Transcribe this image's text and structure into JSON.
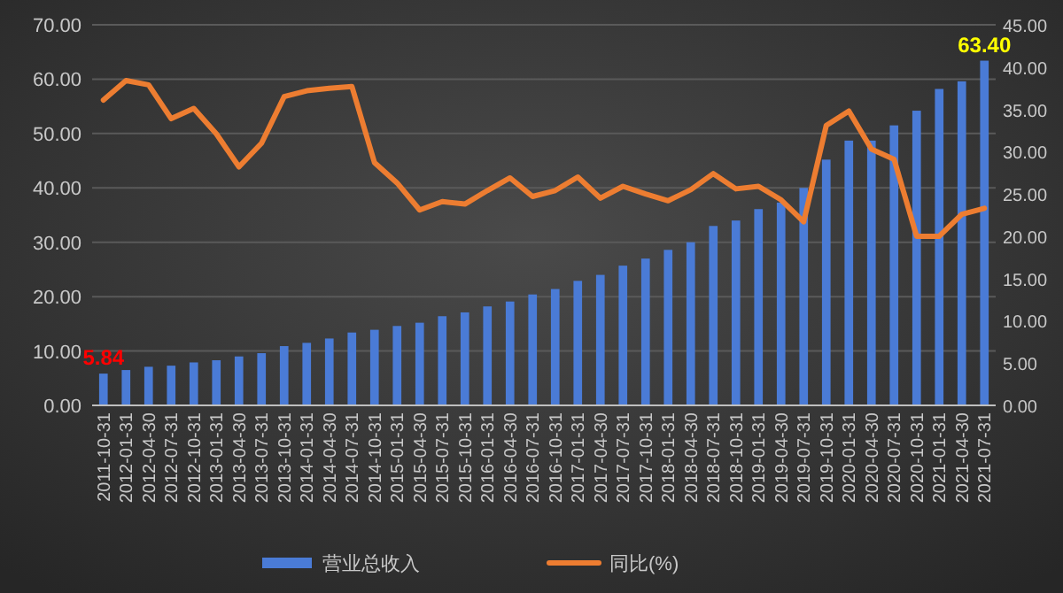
{
  "chart_data": {
    "type": "bar",
    "categories": [
      "2011-10-31",
      "2012-01-31",
      "2012-04-30",
      "2012-07-31",
      "2012-10-31",
      "2013-01-31",
      "2013-04-30",
      "2013-07-31",
      "2013-10-31",
      "2014-01-31",
      "2014-04-30",
      "2014-07-31",
      "2014-10-31",
      "2015-01-31",
      "2015-04-30",
      "2015-07-31",
      "2015-10-31",
      "2016-01-31",
      "2016-04-30",
      "2016-07-31",
      "2016-10-31",
      "2017-01-31",
      "2017-04-30",
      "2017-07-31",
      "2017-10-31",
      "2018-01-31",
      "2018-04-30",
      "2018-07-31",
      "2018-10-31",
      "2019-01-31",
      "2019-04-30",
      "2019-07-31",
      "2019-10-31",
      "2020-01-31",
      "2020-04-30",
      "2020-07-31",
      "2020-10-31",
      "2021-01-31",
      "2021-04-30",
      "2021-07-31"
    ],
    "series": [
      {
        "name": "营业总收入",
        "color": "#4a7bd6",
        "values": [
          5.84,
          6.5,
          7.1,
          7.3,
          7.9,
          8.3,
          9.0,
          9.6,
          10.9,
          11.5,
          12.3,
          13.4,
          13.9,
          14.6,
          15.2,
          16.4,
          17.1,
          18.2,
          19.1,
          20.4,
          21.4,
          22.9,
          24.0,
          25.7,
          27.0,
          28.6,
          30.0,
          33.0,
          34.0,
          36.1,
          37.3,
          40.0,
          45.2,
          48.7,
          48.7,
          51.5,
          54.2,
          58.2,
          59.6,
          63.4
        ],
        "value_labels": [
          "5.84",
          null,
          null,
          null,
          null,
          null,
          null,
          null,
          null,
          null,
          null,
          null,
          null,
          null,
          null,
          null,
          null,
          null,
          null,
          null,
          null,
          null,
          null,
          null,
          null,
          null,
          null,
          null,
          null,
          null,
          null,
          null,
          null,
          null,
          null,
          null,
          null,
          null,
          null,
          "63.40"
        ]
      },
      {
        "name": "同比(%)",
        "type": "line",
        "axis": "y2",
        "color": "#ed7d31",
        "values": [
          36.1,
          38.4,
          37.9,
          33.9,
          35.1,
          32.1,
          28.2,
          31.0,
          36.5,
          37.2,
          37.5,
          37.7,
          28.7,
          26.3,
          23.1,
          24.1,
          23.8,
          25.4,
          26.9,
          24.7,
          25.4,
          27.0,
          24.5,
          25.9,
          25.0,
          24.2,
          25.5,
          27.4,
          25.6,
          25.9,
          24.3,
          21.7,
          33.1,
          34.8,
          30.3,
          29.1,
          20.0,
          20.0,
          22.6,
          23.3
        ]
      }
    ],
    "ylim": [
      0,
      70
    ],
    "yticks": [
      {
        "value": 0,
        "label": "0.00"
      },
      {
        "value": 10,
        "label": "10.00"
      },
      {
        "value": 20,
        "label": "20.00"
      },
      {
        "value": 30,
        "label": "30.00"
      },
      {
        "value": 40,
        "label": "40.00"
      },
      {
        "value": 50,
        "label": "50.00"
      },
      {
        "value": 60,
        "label": "60.00"
      },
      {
        "value": 70,
        "label": "70.00"
      }
    ],
    "y2lim": [
      0,
      45
    ],
    "y2ticks": [
      {
        "value": 0,
        "label": "0.00"
      },
      {
        "value": 5,
        "label": "5.00"
      },
      {
        "value": 10,
        "label": "10.00"
      },
      {
        "value": 15,
        "label": "15.00"
      },
      {
        "value": 20,
        "label": "20.00"
      },
      {
        "value": 25,
        "label": "25.00"
      },
      {
        "value": 30,
        "label": "30.00"
      },
      {
        "value": 35,
        "label": "35.00"
      },
      {
        "value": 40,
        "label": "40.00"
      },
      {
        "value": 45,
        "label": "45.00"
      }
    ],
    "grid": "y",
    "legend": "bottom",
    "marker": "none",
    "line_style": "solid"
  }
}
